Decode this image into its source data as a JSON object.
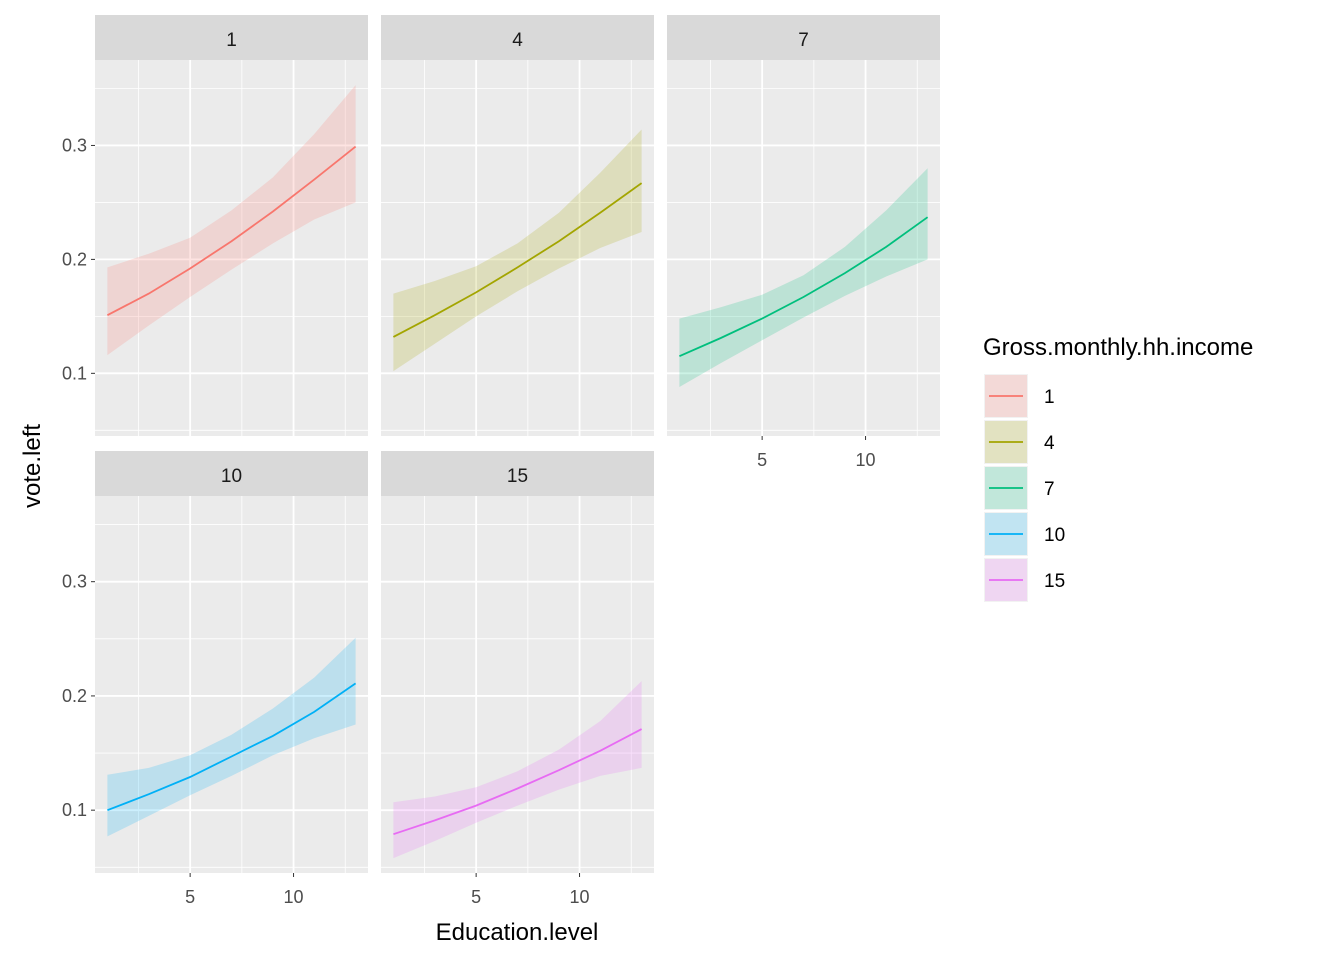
{
  "chart_data": {
    "type": "line",
    "xlabel": "Education.level",
    "ylabel": "vote.left",
    "xlim": [
      0.4,
      13.6
    ],
    "ylim": [
      0.045,
      0.375
    ],
    "x_ticks": [
      5,
      10
    ],
    "y_ticks": [
      0.1,
      0.2,
      0.3
    ],
    "x_tick_labels": [
      "5",
      "10"
    ],
    "y_tick_labels": [
      "0.1",
      "0.2",
      "0.3"
    ],
    "grid": true,
    "legend_title": "Gross.monthly.hh.income",
    "legend_position": "right",
    "x": [
      1,
      3,
      5,
      7,
      9,
      11,
      13
    ],
    "series": [
      {
        "name": "1",
        "color": "#F8766D",
        "values": [
          0.151,
          0.17,
          0.192,
          0.216,
          0.242,
          0.27,
          0.299
        ],
        "lower": [
          0.116,
          0.142,
          0.167,
          0.191,
          0.214,
          0.235,
          0.25
        ],
        "upper": [
          0.193,
          0.205,
          0.219,
          0.243,
          0.272,
          0.31,
          0.353
        ]
      },
      {
        "name": "4",
        "color": "#A3A500",
        "values": [
          0.132,
          0.151,
          0.171,
          0.193,
          0.216,
          0.241,
          0.267
        ],
        "lower": [
          0.102,
          0.126,
          0.15,
          0.172,
          0.192,
          0.21,
          0.224
        ],
        "upper": [
          0.17,
          0.181,
          0.194,
          0.214,
          0.241,
          0.276,
          0.314
        ]
      },
      {
        "name": "7",
        "color": "#00BF7D",
        "values": [
          0.115,
          0.131,
          0.148,
          0.167,
          0.188,
          0.211,
          0.237
        ],
        "lower": [
          0.088,
          0.109,
          0.129,
          0.149,
          0.168,
          0.185,
          0.2
        ],
        "upper": [
          0.148,
          0.158,
          0.169,
          0.186,
          0.211,
          0.243,
          0.28
        ]
      },
      {
        "name": "10",
        "color": "#00B0F6",
        "values": [
          0.1,
          0.114,
          0.129,
          0.147,
          0.165,
          0.186,
          0.211
        ],
        "lower": [
          0.077,
          0.095,
          0.113,
          0.13,
          0.148,
          0.163,
          0.175
        ],
        "upper": [
          0.131,
          0.137,
          0.148,
          0.166,
          0.189,
          0.216,
          0.251
        ]
      },
      {
        "name": "15",
        "color": "#E76BF3",
        "values": [
          0.079,
          0.091,
          0.104,
          0.119,
          0.135,
          0.152,
          0.171
        ],
        "lower": [
          0.058,
          0.073,
          0.089,
          0.104,
          0.118,
          0.13,
          0.137
        ],
        "upper": [
          0.107,
          0.112,
          0.12,
          0.134,
          0.153,
          0.178,
          0.213
        ]
      }
    ]
  }
}
